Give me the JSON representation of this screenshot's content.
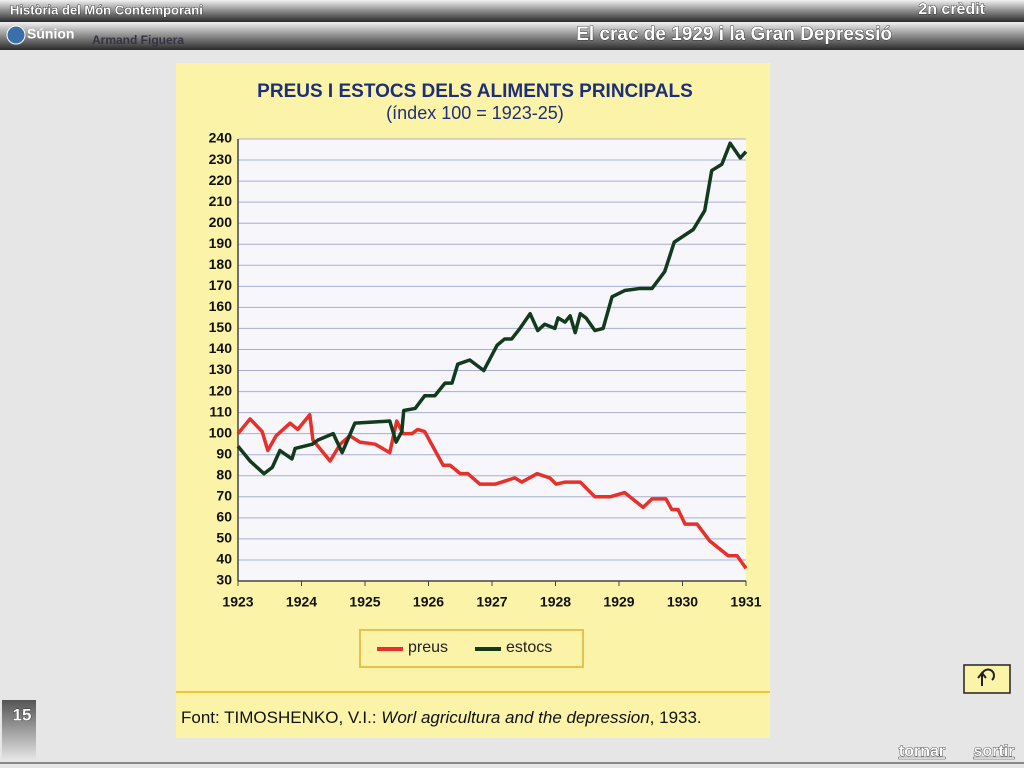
{
  "header": {
    "course": "Història del Món Contemporani",
    "credit": "2n crèdit",
    "logo": "Súnion",
    "author": "Armand Figuera",
    "topic": "El crac de 1929 i la Gran Depressió"
  },
  "chart_data": {
    "type": "line",
    "title": "PREUS I ESTOCS DELS ALIMENTS PRINCIPALS",
    "subtitle": "(índex 100 = 1923-25)",
    "xlim": [
      1923,
      1931
    ],
    "xticks": [
      1923,
      1924,
      1925,
      1926,
      1927,
      1928,
      1929,
      1930,
      1931
    ],
    "ylim": [
      30,
      240
    ],
    "yticks": [
      30,
      40,
      50,
      60,
      70,
      80,
      90,
      100,
      110,
      120,
      130,
      140,
      150,
      160,
      170,
      180,
      190,
      200,
      210,
      220,
      230,
      240
    ],
    "grid": true,
    "legend": "bottom",
    "series": [
      {
        "name": "preus",
        "color": "#e8302a",
        "x": [
          1923.0,
          1923.19,
          1923.38,
          1923.47,
          1923.6,
          1923.82,
          1923.94,
          1924.13,
          1924.18,
          1924.45,
          1924.61,
          1924.76,
          1924.92,
          1925.16,
          1925.39,
          1925.5,
          1925.6,
          1925.74,
          1925.83,
          1925.94,
          1926.23,
          1926.34,
          1926.5,
          1926.62,
          1926.81,
          1927.05,
          1927.36,
          1927.47,
          1927.71,
          1927.91,
          1928.01,
          1928.15,
          1928.39,
          1928.62,
          1928.86,
          1929.09,
          1929.38,
          1929.52,
          1929.74,
          1929.83,
          1929.93,
          1930.04,
          1930.23,
          1930.43,
          1930.72,
          1930.86,
          1931.0
        ],
        "values": [
          100,
          107,
          101,
          92,
          99,
          105,
          102,
          109,
          97,
          87,
          95,
          99,
          96,
          95,
          91,
          106,
          100,
          100,
          102,
          101,
          85,
          85,
          81,
          81,
          76,
          76,
          79,
          77,
          81,
          79,
          76,
          77,
          77,
          70,
          70,
          72,
          65,
          69,
          69,
          64,
          64,
          57,
          57,
          49,
          42,
          42,
          36
        ]
      },
      {
        "name": "estocs",
        "color": "#123a1c",
        "x": [
          1923.0,
          1923.19,
          1923.41,
          1923.54,
          1923.66,
          1923.85,
          1923.9,
          1924.17,
          1924.26,
          1924.5,
          1924.64,
          1924.84,
          1925.39,
          1925.49,
          1925.58,
          1925.61,
          1925.79,
          1925.94,
          1926.1,
          1926.26,
          1926.37,
          1926.46,
          1926.65,
          1926.87,
          1927.08,
          1927.2,
          1927.31,
          1927.44,
          1927.6,
          1927.72,
          1927.83,
          1927.99,
          1928.04,
          1928.15,
          1928.23,
          1928.31,
          1928.39,
          1928.48,
          1928.62,
          1928.75,
          1928.89,
          1929.09,
          1929.33,
          1929.52,
          1929.72,
          1929.87,
          1930.17,
          1930.35,
          1930.46,
          1930.62,
          1930.75,
          1930.91,
          1931.0
        ],
        "values": [
          94,
          87,
          81,
          84,
          92,
          88,
          93,
          95,
          97,
          100,
          91,
          105,
          106,
          96,
          101,
          111,
          112,
          118,
          118,
          124,
          124,
          133,
          135,
          130,
          142,
          145,
          145,
          150,
          157,
          149,
          152,
          150,
          155,
          153,
          156,
          148,
          157,
          155,
          149,
          150,
          165,
          168,
          169,
          169,
          177,
          191,
          197,
          206,
          225,
          228,
          238,
          231,
          234
        ]
      }
    ]
  },
  "source": {
    "prefix": "Font: TIMOSHENKO, V.I.:",
    "work": "Worl agricultura and the depression",
    "suffix": ", 1933."
  },
  "footer": {
    "page": "15",
    "back": "tornar",
    "exit": "sortir"
  }
}
